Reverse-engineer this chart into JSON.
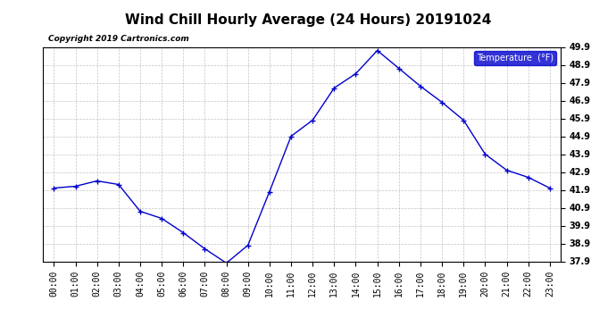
{
  "title": "Wind Chill Hourly Average (24 Hours) 20191024",
  "copyright_text": "Copyright 2019 Cartronics.com",
  "legend_label": "Temperature  (°F)",
  "x_labels": [
    "00:00",
    "01:00",
    "02:00",
    "03:00",
    "04:00",
    "05:00",
    "06:00",
    "07:00",
    "08:00",
    "09:00",
    "10:00",
    "11:00",
    "12:00",
    "13:00",
    "14:00",
    "15:00",
    "16:00",
    "17:00",
    "18:00",
    "19:00",
    "20:00",
    "21:00",
    "22:00",
    "23:00"
  ],
  "y_values": [
    42.0,
    42.1,
    42.4,
    42.2,
    40.7,
    40.3,
    39.5,
    38.6,
    37.8,
    38.8,
    41.8,
    44.9,
    45.8,
    47.6,
    48.4,
    49.7,
    48.7,
    47.7,
    46.8,
    45.8,
    43.9,
    43.0,
    42.6,
    42.0
  ],
  "ylim_min": 37.9,
  "ylim_max": 49.9,
  "yticks": [
    37.9,
    38.9,
    39.9,
    40.9,
    41.9,
    42.9,
    43.9,
    44.9,
    45.9,
    46.9,
    47.9,
    48.9,
    49.9
  ],
  "line_color": "#0000cc",
  "marker": "+",
  "bg_color": "#ffffff",
  "grid_color": "#aaaaaa",
  "title_fontsize": 11,
  "tick_fontsize": 7,
  "legend_bg": "#0000cc",
  "legend_text_color": "#ffffff",
  "copyright_fontsize": 6.5
}
